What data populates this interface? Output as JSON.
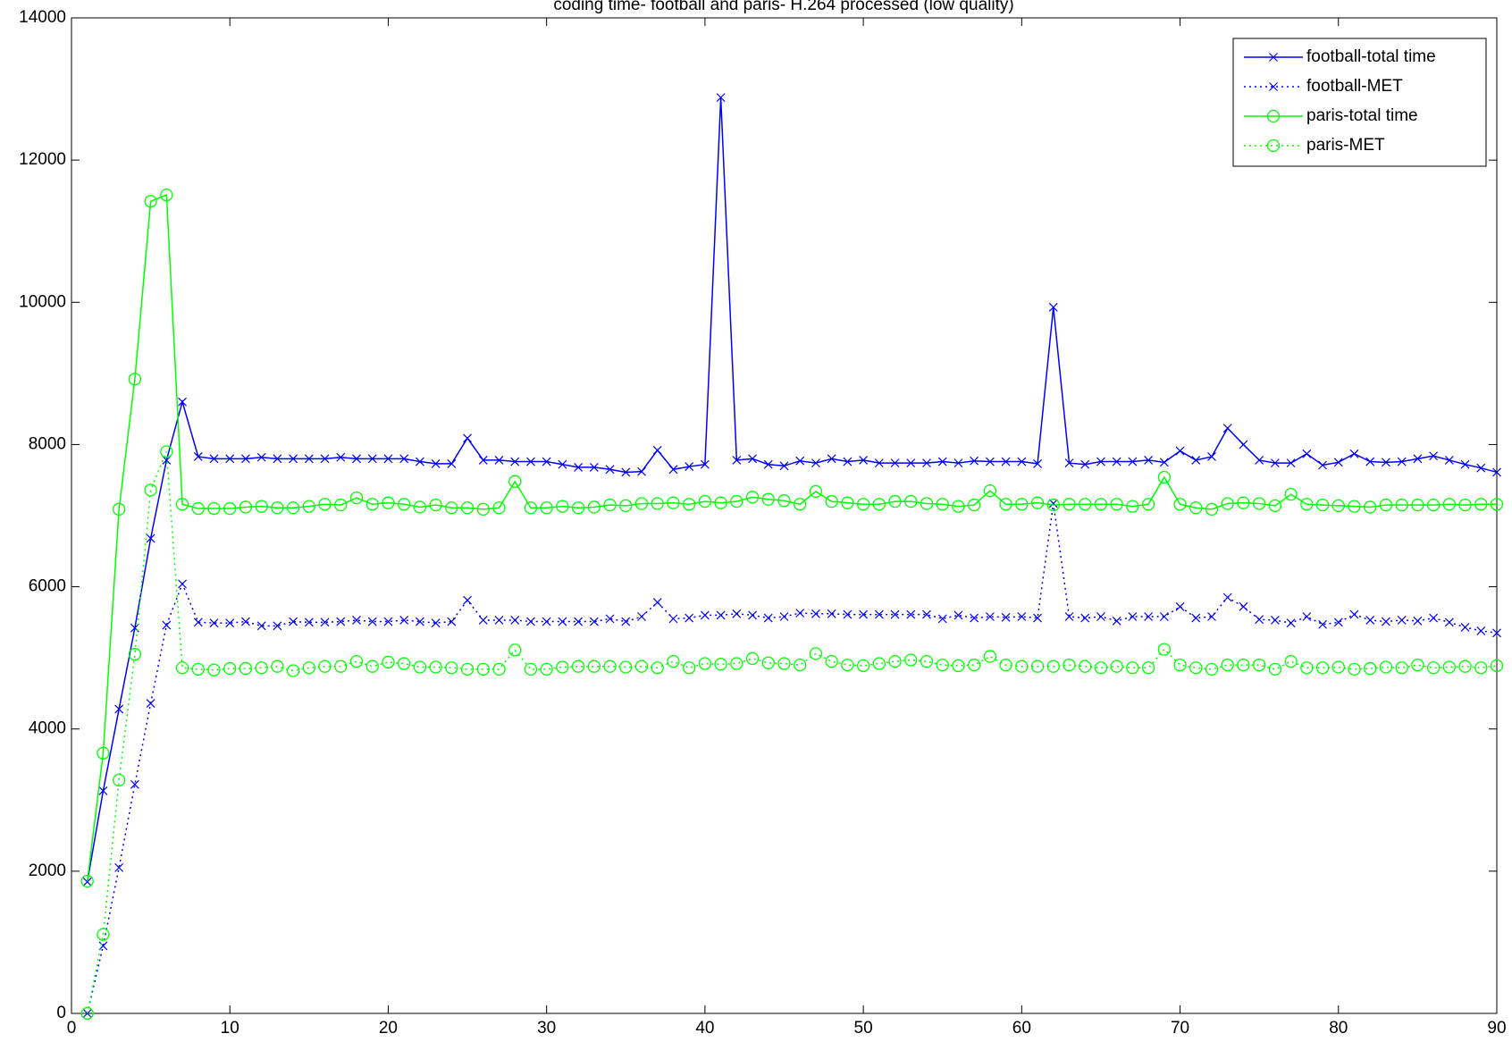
{
  "chart_data": {
    "type": "line",
    "title": "coding time- football and paris- H.264 processed (low quality)",
    "x": [
      1,
      2,
      3,
      4,
      5,
      6,
      7,
      8,
      9,
      10,
      11,
      12,
      13,
      14,
      15,
      16,
      17,
      18,
      19,
      20,
      21,
      22,
      23,
      24,
      25,
      26,
      27,
      28,
      29,
      30,
      31,
      32,
      33,
      34,
      35,
      36,
      37,
      38,
      39,
      40,
      41,
      42,
      43,
      44,
      45,
      46,
      47,
      48,
      49,
      50,
      51,
      52,
      53,
      54,
      55,
      56,
      57,
      58,
      59,
      60,
      61,
      62,
      63,
      64,
      65,
      66,
      67,
      68,
      69,
      70,
      71,
      72,
      73,
      74,
      75,
      76,
      77,
      78,
      79,
      80,
      81,
      82,
      83,
      84,
      85,
      86,
      87,
      88,
      89,
      90
    ],
    "series": [
      {
        "name": "football-total time",
        "color": "#0000ff",
        "linestyle": "solid",
        "marker": "x",
        "values": [
          1850,
          3130,
          4280,
          5420,
          6680,
          7780,
          8600,
          7830,
          7800,
          7800,
          7800,
          7820,
          7800,
          7800,
          7800,
          7800,
          7820,
          7800,
          7800,
          7800,
          7800,
          7760,
          7730,
          7730,
          8090,
          7780,
          7780,
          7760,
          7760,
          7760,
          7720,
          7680,
          7680,
          7650,
          7610,
          7620,
          7920,
          7650,
          7690,
          7720,
          12880,
          7780,
          7800,
          7720,
          7700,
          7770,
          7740,
          7800,
          7760,
          7780,
          7740,
          7740,
          7740,
          7740,
          7760,
          7740,
          7770,
          7760,
          7760,
          7760,
          7730,
          9930,
          7740,
          7720,
          7760,
          7760,
          7760,
          7780,
          7750,
          7910,
          7780,
          7830,
          8230,
          8000,
          7780,
          7740,
          7740,
          7870,
          7710,
          7750,
          7870,
          7760,
          7750,
          7760,
          7800,
          7840,
          7780,
          7720,
          7670,
          7610
        ]
      },
      {
        "name": "football-MET",
        "color": "#0000ff",
        "linestyle": "dotted",
        "marker": "x",
        "values": [
          0,
          950,
          2050,
          3220,
          4360,
          5460,
          6040,
          5500,
          5490,
          5490,
          5510,
          5450,
          5450,
          5510,
          5500,
          5500,
          5510,
          5530,
          5510,
          5510,
          5530,
          5510,
          5490,
          5510,
          5810,
          5530,
          5530,
          5530,
          5510,
          5510,
          5510,
          5510,
          5510,
          5550,
          5510,
          5580,
          5780,
          5550,
          5560,
          5600,
          5600,
          5620,
          5600,
          5560,
          5580,
          5630,
          5620,
          5620,
          5610,
          5610,
          5610,
          5610,
          5610,
          5610,
          5550,
          5600,
          5560,
          5580,
          5570,
          5580,
          5560,
          7170,
          5580,
          5560,
          5580,
          5520,
          5580,
          5580,
          5580,
          5720,
          5560,
          5580,
          5850,
          5720,
          5540,
          5530,
          5490,
          5580,
          5470,
          5500,
          5610,
          5530,
          5510,
          5530,
          5520,
          5560,
          5500,
          5430,
          5380,
          5350
        ]
      },
      {
        "name": "paris-total time",
        "color": "#00ff00",
        "linestyle": "solid",
        "marker": "o",
        "values": [
          1860,
          3660,
          7090,
          8920,
          11420,
          11510,
          7160,
          7100,
          7100,
          7100,
          7120,
          7130,
          7110,
          7110,
          7130,
          7160,
          7150,
          7250,
          7160,
          7180,
          7160,
          7120,
          7150,
          7110,
          7110,
          7090,
          7110,
          7480,
          7110,
          7110,
          7130,
          7110,
          7120,
          7150,
          7140,
          7170,
          7170,
          7180,
          7160,
          7200,
          7180,
          7200,
          7260,
          7230,
          7210,
          7160,
          7340,
          7200,
          7180,
          7160,
          7160,
          7200,
          7200,
          7170,
          7160,
          7130,
          7150,
          7350,
          7160,
          7160,
          7180,
          7150,
          7160,
          7160,
          7160,
          7160,
          7130,
          7160,
          7540,
          7160,
          7110,
          7090,
          7170,
          7180,
          7170,
          7140,
          7300,
          7160,
          7150,
          7140,
          7130,
          7120,
          7150,
          7150,
          7150,
          7150,
          7160,
          7150,
          7160,
          7160
        ]
      },
      {
        "name": "paris-MET",
        "color": "#00ff00",
        "linestyle": "dotted",
        "marker": "o",
        "values": [
          0,
          1110,
          3280,
          5050,
          7360,
          7900,
          4860,
          4840,
          4830,
          4850,
          4850,
          4860,
          4880,
          4820,
          4860,
          4880,
          4880,
          4950,
          4880,
          4940,
          4920,
          4870,
          4870,
          4860,
          4840,
          4840,
          4840,
          5110,
          4840,
          4840,
          4870,
          4880,
          4880,
          4880,
          4870,
          4880,
          4860,
          4950,
          4860,
          4920,
          4910,
          4920,
          4990,
          4930,
          4920,
          4900,
          5060,
          4950,
          4900,
          4890,
          4920,
          4950,
          4970,
          4950,
          4900,
          4890,
          4900,
          5020,
          4900,
          4880,
          4880,
          4880,
          4900,
          4880,
          4860,
          4880,
          4860,
          4860,
          5120,
          4900,
          4860,
          4840,
          4900,
          4900,
          4900,
          4840,
          4950,
          4860,
          4860,
          4870,
          4840,
          4850,
          4870,
          4860,
          4900,
          4860,
          4870,
          4880,
          4860,
          4890
        ]
      }
    ],
    "xlim": [
      0,
      90
    ],
    "xticks": [
      0,
      10,
      20,
      30,
      40,
      50,
      60,
      70,
      80,
      90
    ],
    "ylim": [
      0,
      14000
    ],
    "yticks": [
      0,
      2000,
      4000,
      6000,
      8000,
      10000,
      12000,
      14000
    ],
    "grid": false,
    "legend": "upper right"
  }
}
